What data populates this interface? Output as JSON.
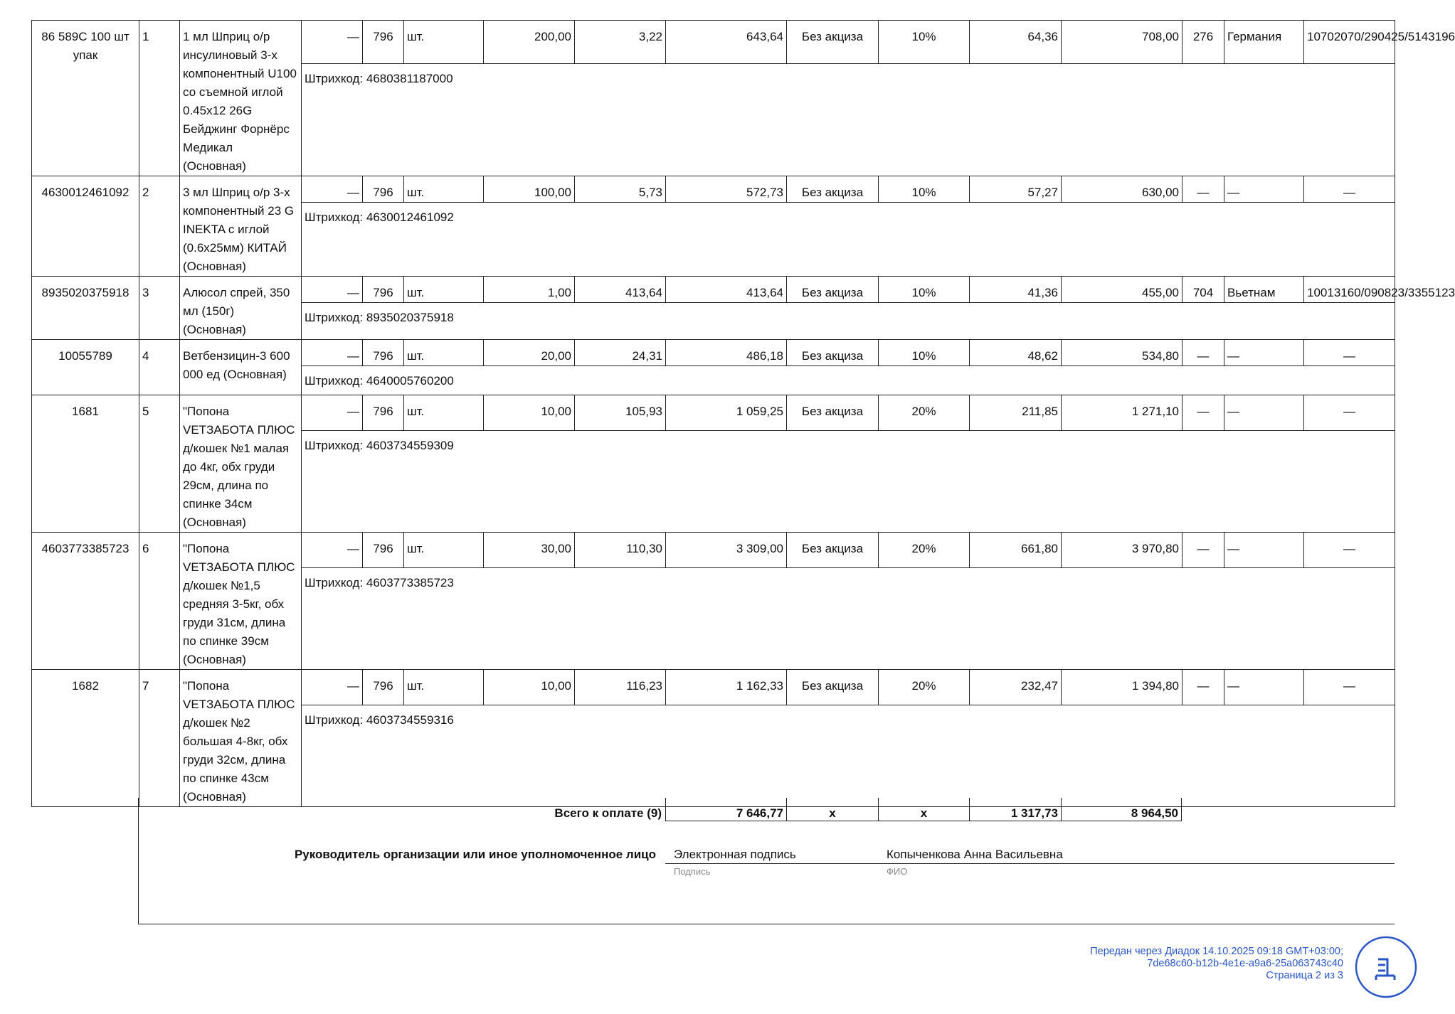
{
  "rows": [
    {
      "code": "86 589С 100 шт упак",
      "num": "1",
      "name": "1 мл Шприц о/р инсулиновый 3-х компонентный U100 со съемной иглой 0.45x12 26G Бейджинг Форнёрс Медикал (Основная)",
      "type": "—",
      "unit_code": "796",
      "unit": "шт.",
      "qty": "200,00",
      "price": "3,22",
      "cost": "643,64",
      "excise": "Без акциза",
      "rate": "10%",
      "tax": "64,36",
      "total": "708,00",
      "country_code": "276",
      "country": "Германия",
      "customs": "10702070/290425/5143196",
      "barcode": "Штрихкод: 4680381187000"
    },
    {
      "code": "4630012461092",
      "num": "2",
      "name": "3 мл Шприц о/р 3-х компонентный  23 G INEKTA с иглой (0.6x25мм) КИТАЙ (Основная)",
      "type": "—",
      "unit_code": "796",
      "unit": "шт.",
      "qty": "100,00",
      "price": "5,73",
      "cost": "572,73",
      "excise": "Без акциза",
      "rate": "10%",
      "tax": "57,27",
      "total": "630,00",
      "country_code": "—",
      "country": "—",
      "customs": "—",
      "barcode": "Штрихкод: 4630012461092"
    },
    {
      "code": "8935020375918",
      "num": "3",
      "name": "Алюсол спрей, 350 мл (150г) (Основная)",
      "type": "—",
      "unit_code": "796",
      "unit": "шт.",
      "qty": "1,00",
      "price": "413,64",
      "cost": "413,64",
      "excise": "Без акциза",
      "rate": "10%",
      "tax": "41,36",
      "total": "455,00",
      "country_code": "704",
      "country": "Вьетнам",
      "customs": "10013160/090823/3355123",
      "barcode": "Штрихкод: 8935020375918"
    },
    {
      "code": "10055789",
      "num": "4",
      "name": "Ветбензицин-3 600 000 ед (Основная)",
      "type": "—",
      "unit_code": "796",
      "unit": "шт.",
      "qty": "20,00",
      "price": "24,31",
      "cost": "486,18",
      "excise": "Без акциза",
      "rate": "10%",
      "tax": "48,62",
      "total": "534,80",
      "country_code": "—",
      "country": "—",
      "customs": "—",
      "barcode": "Штрихкод: 4640005760200"
    },
    {
      "code": "1681",
      "num": "5",
      "name": "\"Попона VETЗАБОТА ПЛЮС д/кошек №1 малая до 4кг, обх груди 29см, длина по спинке 34см (Основная)",
      "type": "—",
      "unit_code": "796",
      "unit": "шт.",
      "qty": "10,00",
      "price": "105,93",
      "cost": "1 059,25",
      "excise": "Без акциза",
      "rate": "20%",
      "tax": "211,85",
      "total": "1 271,10",
      "country_code": "—",
      "country": "—",
      "customs": "—",
      "barcode": "Штрихкод: 4603734559309"
    },
    {
      "code": "4603773385723",
      "num": "6",
      "name": "\"Попона VETЗАБОТА ПЛЮС д/кошек №1,5 средняя 3-5кг, обх груди 31см, длина по спинке 39см (Основная)",
      "type": "—",
      "unit_code": "796",
      "unit": "шт.",
      "qty": "30,00",
      "price": "110,30",
      "cost": "3 309,00",
      "excise": "Без акциза",
      "rate": "20%",
      "tax": "661,80",
      "total": "3 970,80",
      "country_code": "—",
      "country": "—",
      "customs": "—",
      "barcode": "Штрихкод: 4603773385723"
    },
    {
      "code": "1682",
      "num": "7",
      "name": "\"Попона VETЗАБОТА ПЛЮС д/кошек №2 большая 4-8кг, обх груди 32см, длина по спинке 43см (Основная)",
      "type": "—",
      "unit_code": "796",
      "unit": "шт.",
      "qty": "10,00",
      "price": "116,23",
      "cost": "1 162,33",
      "excise": "Без акциза",
      "rate": "20%",
      "tax": "232,47",
      "total": "1 394,80",
      "country_code": "—",
      "country": "—",
      "customs": "—",
      "barcode": "Штрихкод: 4603734559316"
    }
  ],
  "totals": {
    "label": "Всего к оплате (9)",
    "cost": "7 646,77",
    "excise": "x",
    "rate": "x",
    "tax": "1 317,73",
    "total": "8 964,50"
  },
  "signature": {
    "role": "Руководитель организации или иное уполномоченное лицо",
    "sign": "Электронная подпись",
    "sign_caption": "Подпись",
    "name": "Копыченкова Анна Васильевна",
    "name_caption": "ФИО"
  },
  "footer": {
    "line1": "Передан через Диадок 14.10.2025 09:18 GMT+03:00;",
    "line2": "7de68c60-b12b-4e1e-a9a6-25a063743c40",
    "line3": "Страница 2 из 3",
    "logo_icon": "diadoc-logo-icon",
    "color": "#2a56c6"
  }
}
